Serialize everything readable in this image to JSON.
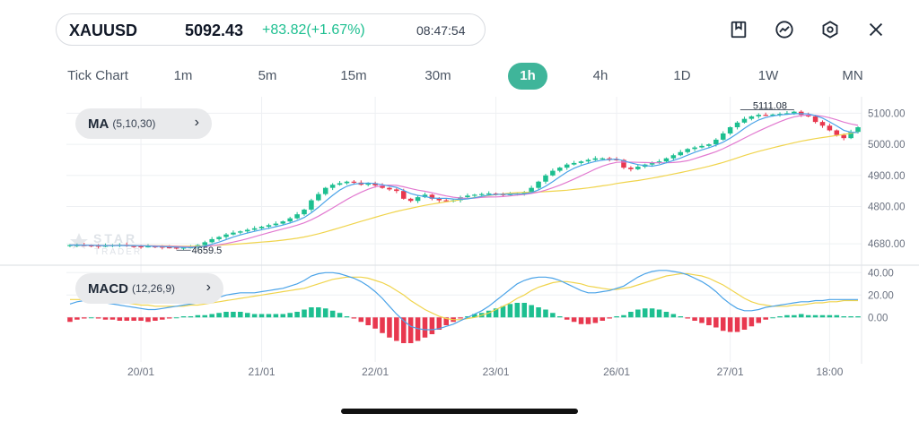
{
  "header": {
    "symbol": "XAUUSD",
    "price": "5092.43",
    "change": "+83.82(+1.67%)",
    "time": "08:47:54"
  },
  "icons": {
    "bookmark": "bookmark-icon",
    "trend": "trend-icon",
    "settings": "settings-icon",
    "close": "close-icon"
  },
  "timeframes": [
    "Tick Chart",
    "1m",
    "5m",
    "15m",
    "30m",
    "1h",
    "4h",
    "1D",
    "1W",
    "MN"
  ],
  "active_timeframe": "1h",
  "indicators": {
    "ma": {
      "name": "MA",
      "params": "(5,10,30)"
    },
    "macd": {
      "name": "MACD",
      "params": "(12,26,9)"
    }
  },
  "watermark": {
    "line1": "STAR",
    "line2": "TRADER"
  },
  "colors": {
    "up": "#1dbf90",
    "down": "#e8384f",
    "ma5": "#4aa3e8",
    "ma10": "#e27ad0",
    "ma30": "#f0d44c",
    "macd_line": "#4aa3e8",
    "signal_line": "#f0d44c",
    "accent": "#3fb59a"
  },
  "chart_data": {
    "type": "candlestick",
    "price_axis": [
      "5100.00",
      "5000.00",
      "4900.00",
      "4800.00",
      "4680.00"
    ],
    "price_ticks": [
      5100,
      5000,
      4900,
      4800,
      4680
    ],
    "ylim": [
      4640,
      5130
    ],
    "max_label": "5111.08",
    "max_value": 5111.08,
    "min_label": "4659.5",
    "min_value": 4659.5,
    "macd_axis": [
      "40.00",
      "20.00",
      "0.00"
    ],
    "macd_ticks": [
      40,
      20,
      0
    ],
    "macd_ylim": [
      -35,
      45
    ],
    "x_labels": [
      "20/01",
      "21/01",
      "22/01",
      "23/01",
      "26/01",
      "27/01",
      "18:00"
    ],
    "x_label_index": [
      10,
      27,
      43,
      60,
      77,
      93,
      107
    ],
    "slot_count": 112,
    "close_path": [
      4676,
      4676,
      4675,
      4674,
      4672,
      4674,
      4676,
      4677,
      4673,
      4672,
      4671,
      4672,
      4671,
      4669,
      4668,
      4667,
      4668,
      4669,
      4676,
      4685,
      4695,
      4702,
      4710,
      4716,
      4720,
      4725,
      4730,
      4735,
      4740,
      4745,
      4752,
      4762,
      4775,
      4790,
      4820,
      4840,
      4860,
      4870,
      4875,
      4880,
      4877,
      4870,
      4875,
      4868,
      4860,
      4855,
      4850,
      4825,
      4818,
      4830,
      4838,
      4825,
      4820,
      4818,
      4820,
      4830,
      4835,
      4838,
      4840,
      4842,
      4840,
      4838,
      4840,
      4842,
      4845,
      4860,
      4880,
      4900,
      4915,
      4925,
      4935,
      4940,
      4945,
      4950,
      4955,
      4955,
      4952,
      4950,
      4925,
      4920,
      4928,
      4935,
      4940,
      4945,
      4955,
      4965,
      4975,
      4985,
      4990,
      4995,
      5000,
      5015,
      5035,
      5055,
      5070,
      5082,
      5090,
      5095,
      5094,
      5096,
      5098,
      5100,
      5105,
      5095,
      5090,
      5072,
      5060,
      5045,
      5030,
      5020,
      5040,
      5055
    ],
    "macd": [
      12,
      14,
      15,
      15,
      14,
      13,
      12,
      11,
      10,
      9,
      8,
      7,
      7,
      8,
      9,
      10,
      11,
      12,
      13,
      14,
      16,
      18,
      20,
      21,
      22,
      22,
      22,
      23,
      24,
      25,
      26,
      28,
      30,
      33,
      37,
      39,
      40,
      40,
      39,
      37,
      35,
      32,
      28,
      23,
      17,
      10,
      3,
      -3,
      -8,
      -10,
      -11,
      -11,
      -10,
      -8,
      -6,
      -3,
      0,
      3,
      6,
      10,
      15,
      20,
      25,
      30,
      33,
      35,
      36,
      36,
      35,
      33,
      30,
      27,
      24,
      22,
      22,
      23,
      24,
      26,
      28,
      32,
      36,
      39,
      41,
      42,
      42,
      41,
      40,
      38,
      35,
      32,
      28,
      23,
      17,
      12,
      8,
      6,
      6,
      7,
      9,
      10,
      11,
      12,
      13,
      14,
      14,
      15,
      15,
      16,
      16,
      16,
      16,
      16
    ],
    "signal": [
      16,
      16,
      16,
      15,
      15,
      15,
      14,
      14,
      13,
      12,
      11,
      11,
      10,
      10,
      10,
      10,
      10,
      11,
      11,
      12,
      13,
      14,
      15,
      16,
      17,
      18,
      19,
      20,
      21,
      22,
      23,
      24,
      25,
      26,
      28,
      30,
      32,
      34,
      35,
      36,
      36,
      36,
      35,
      33,
      31,
      28,
      24,
      20,
      15,
      11,
      7,
      4,
      1,
      -1,
      -2,
      -2,
      -1,
      0,
      2,
      4,
      7,
      10,
      13,
      17,
      20,
      24,
      27,
      29,
      31,
      32,
      32,
      31,
      30,
      28,
      27,
      26,
      25,
      25,
      26,
      27,
      29,
      31,
      33,
      35,
      37,
      38,
      39,
      39,
      38,
      37,
      35,
      32,
      29,
      25,
      21,
      17,
      14,
      12,
      11,
      10,
      10,
      10,
      11,
      11,
      12,
      13,
      13,
      14,
      14,
      15,
      15,
      15
    ]
  }
}
